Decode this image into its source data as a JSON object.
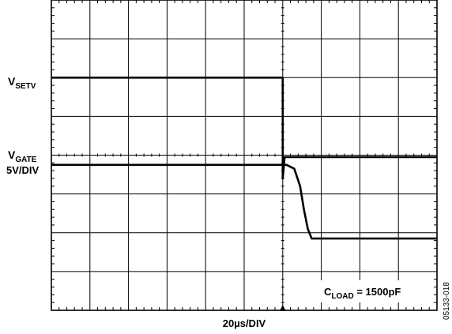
{
  "chart_data": {
    "type": "line",
    "grid": true,
    "x_divisions": 10,
    "y_divisions": 8,
    "x_scale_label": "20µs/DIV",
    "trigger_division": 6,
    "labels": {
      "setv": {
        "main": "V",
        "sub": "SETV"
      },
      "gate": {
        "main": "V",
        "sub": "GATE"
      },
      "gate_scale": "5V/DIV",
      "cload": {
        "main": "C",
        "sub": "LOAD",
        "rest": " = 1500pF"
      }
    },
    "figure_id": "05133-018",
    "series": [
      {
        "name": "VSETV",
        "x": [
          0,
          6.0,
          6.0,
          6.05,
          10
        ],
        "y": [
          6.0,
          6.0,
          3.4,
          3.95,
          3.95
        ]
      },
      {
        "name": "VGATE",
        "x": [
          0,
          6.0,
          6.1,
          6.3,
          6.45,
          6.55,
          6.65,
          6.75,
          7.0,
          10
        ],
        "y": [
          3.75,
          3.75,
          3.75,
          3.65,
          3.2,
          2.6,
          2.1,
          1.85,
          1.85,
          1.85
        ]
      }
    ]
  }
}
